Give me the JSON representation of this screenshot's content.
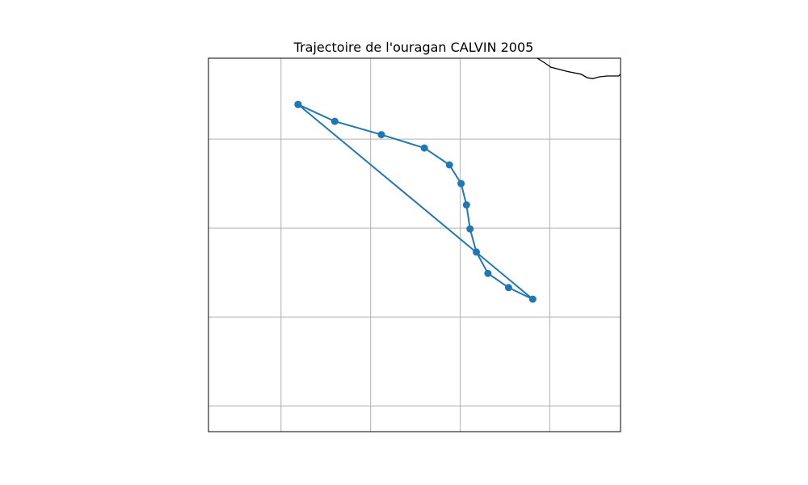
{
  "chart_data": {
    "type": "line",
    "title": "Trajectoire de l'ouragan CALVIN 2005",
    "xlabel": "",
    "ylabel": "",
    "grid": true,
    "track_color": "#1f77b4",
    "coastline_color": "#000000",
    "series": [
      {
        "x": [
          0,
          0.41,
          0.93,
          1.41,
          1.69,
          1.82,
          1.88,
          1.92,
          1.99,
          2.12,
          2.35,
          2.62,
          0
        ],
        "y": [
          2.68,
          2.49,
          2.34,
          2.19,
          2.0,
          1.79,
          1.55,
          1.28,
          1.02,
          0.78,
          0.62,
          0.49,
          2.68
        ]
      }
    ],
    "xlim": [
      -1.0,
      3.6
    ],
    "ylim": [
      -1.0,
      3.2
    ],
    "grid_x": [
      -0.19,
      0.81,
      1.81,
      2.81
    ],
    "grid_y": [
      -0.71,
      0.29,
      1.29,
      2.29
    ],
    "coastline": {
      "x": [
        2.67,
        2.75,
        2.82,
        2.93,
        3.01,
        3.16,
        3.23,
        3.29,
        3.36,
        3.45,
        3.51,
        3.58,
        3.6
      ],
      "y": [
        3.2,
        3.15,
        3.1,
        3.07,
        3.05,
        3.02,
        2.98,
        2.97,
        2.99,
        3.0,
        3.0,
        3.0,
        3.02
      ]
    }
  }
}
